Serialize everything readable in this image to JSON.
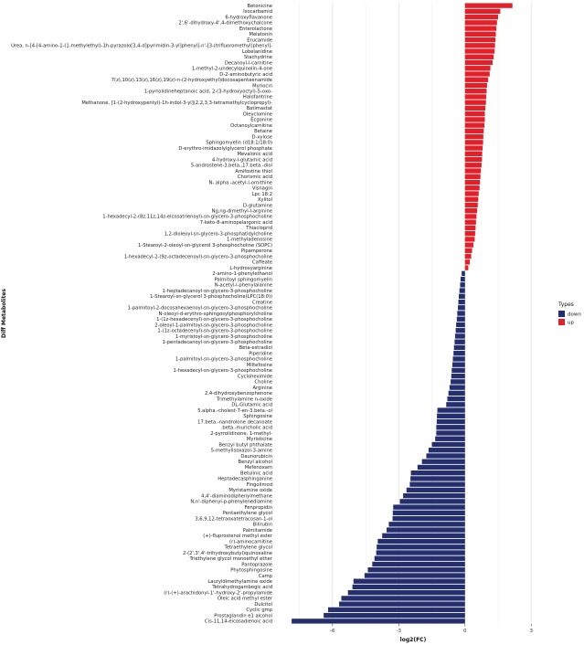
{
  "chart_data": {
    "type": "bar",
    "orientation": "horizontal",
    "xlabel": "log2(FC)",
    "ylabel": "Diff Metabolites",
    "x_ticks": [
      -6,
      -3,
      0,
      3
    ],
    "xlim": [
      -8.6,
      3.9
    ],
    "grid": true,
    "legend": {
      "title": "Types",
      "position": "right",
      "entries": [
        {
          "name": "down",
          "color": "#252f6e"
        },
        {
          "name": "up",
          "color": "#e2202a"
        }
      ]
    },
    "colors": {
      "up": "#e2202a",
      "down": "#252f6e"
    },
    "rows": [
      {
        "name": "Betonicine",
        "value": 2.15,
        "type": "up"
      },
      {
        "name": "Isocarbamid",
        "value": 1.6,
        "type": "up"
      },
      {
        "name": "6-hydroxyflavanone",
        "value": 1.5,
        "type": "up"
      },
      {
        "name": "2',6'-dihydroxy-4',4-dimethoxychalcone",
        "value": 1.45,
        "type": "up"
      },
      {
        "name": "Enterolactone",
        "value": 1.42,
        "type": "up"
      },
      {
        "name": "Melatonin",
        "value": 1.4,
        "type": "up"
      },
      {
        "name": "Erucamide",
        "value": 1.38,
        "type": "up"
      },
      {
        "name": "Urea, n-[4-[4-amino-1-(1-methylethyl)-1h-pyrazolo[3,4-d]pyrimidin-3-yl]phenyl]-n'-[3-(trifluoromethyl)phenyl]-",
        "value": 1.36,
        "type": "up"
      },
      {
        "name": "Lobelanidine",
        "value": 1.34,
        "type": "up"
      },
      {
        "name": "Stachydrine",
        "value": 1.3,
        "type": "up"
      },
      {
        "name": "Decanoyl-l-carnitine",
        "value": 1.25,
        "type": "up"
      },
      {
        "name": "1-methyl-2-undecylquinolin-4-one",
        "value": 1.15,
        "type": "up"
      },
      {
        "name": "D-2-aminobutyric acid",
        "value": 1.12,
        "type": "up"
      },
      {
        "name": "7(z),10(z),13(z),16(z),19(z)-n-(2-hydroxyethyl)docosapentaenamide",
        "value": 1.05,
        "type": "up"
      },
      {
        "name": "Myriocin",
        "value": 1.0,
        "type": "up"
      },
      {
        "name": "1-pyrrolidineheptanoic acid, 2-(3-hydroxyoctyl)-5-oxo-",
        "value": 0.98,
        "type": "up"
      },
      {
        "name": "Halofantrine",
        "value": 0.96,
        "type": "up"
      },
      {
        "name": "Methanone, [1-(2-hydroxypentyl)-1h-indol-3-yl](2,2,3,3-tetramethylcyclopropyl)-",
        "value": 0.95,
        "type": "up"
      },
      {
        "name": "Batimastat",
        "value": 0.92,
        "type": "up"
      },
      {
        "name": "Oleyclomine",
        "value": 0.9,
        "type": "up"
      },
      {
        "name": "Ecgonine",
        "value": 0.9,
        "type": "up"
      },
      {
        "name": "Octanoylcarnitine",
        "value": 0.88,
        "type": "up"
      },
      {
        "name": "Betaine",
        "value": 0.85,
        "type": "up"
      },
      {
        "name": "D-xylose",
        "value": 0.83,
        "type": "up"
      },
      {
        "name": "Sphingomyelin (d18:1/18:0)",
        "value": 0.82,
        "type": "up"
      },
      {
        "name": "D-erythro-imidazolylglycerol phosphate",
        "value": 0.8,
        "type": "up"
      },
      {
        "name": "Mevalonic acid",
        "value": 0.78,
        "type": "up"
      },
      {
        "name": "4-hydroxy-l-glutamic acid",
        "value": 0.77,
        "type": "up"
      },
      {
        "name": "5-androstene-3.beta.,17.beta.-diol",
        "value": 0.75,
        "type": "up"
      },
      {
        "name": "Amifostine thiol",
        "value": 0.72,
        "type": "up"
      },
      {
        "name": "Chorismic acid",
        "value": 0.7,
        "type": "up"
      },
      {
        "name": "N-.alpha.-acetyl-l-ornithine",
        "value": 0.68,
        "type": "up"
      },
      {
        "name": "Visnagin",
        "value": 0.66,
        "type": "up"
      },
      {
        "name": "Lpc 18:2",
        "value": 0.62,
        "type": "up"
      },
      {
        "name": "Xylitol",
        "value": 0.6,
        "type": "up"
      },
      {
        "name": "D-glutamine",
        "value": 0.58,
        "type": "up"
      },
      {
        "name": "Ng,ng-dimethyl-l-arginine",
        "value": 0.55,
        "type": "up"
      },
      {
        "name": "1-hexadecyl-2-(8z,11z,14z-eicosatrienoyl)-sn-glycero-3-phosphocholine",
        "value": 0.52,
        "type": "up"
      },
      {
        "name": "7-keto-8-aminopelargonic acid",
        "value": 0.5,
        "type": "up"
      },
      {
        "name": "Thiacloprid",
        "value": 0.48,
        "type": "up"
      },
      {
        "name": "1,2-dioleoyl-sn-glycero-3-phosphatidylcholine",
        "value": 0.46,
        "type": "up"
      },
      {
        "name": "1-methyladenosine",
        "value": 0.44,
        "type": "up"
      },
      {
        "name": "1-Stearoyl-2-oleoyl-sn-glycerol 3-phosphocholine (SOPC)",
        "value": 0.38,
        "type": "up"
      },
      {
        "name": "Pipamperone",
        "value": 0.32,
        "type": "up"
      },
      {
        "name": "1-hexadecyl-2-(9z-octadecenoyl)-sn-glycero-3-phosphocholine",
        "value": 0.28,
        "type": "up"
      },
      {
        "name": "Caffeate",
        "value": 0.22,
        "type": "up"
      },
      {
        "name": "L-hydroxyarginine",
        "value": 0.15,
        "type": "up"
      },
      {
        "name": "2-amino-1-phenylethanol",
        "value": -0.15,
        "type": "down"
      },
      {
        "name": "Palmitoyl sphingomyelin",
        "value": -0.2,
        "type": "down"
      },
      {
        "name": "N-acetyl-l-phenylalanine",
        "value": -0.22,
        "type": "down"
      },
      {
        "name": "1-heptadecanoyl-sn-glycero-3-phosphocholine",
        "value": -0.25,
        "type": "down"
      },
      {
        "name": "1-Stearoyl-sn-glycerol 3-phosphocholine(LPC(18:0))",
        "value": -0.28,
        "type": "down"
      },
      {
        "name": "Creatine",
        "value": -0.3,
        "type": "down"
      },
      {
        "name": "1-palmitoyl-2-docosahexaenoyl-sn-glycero-3-phosphocholine",
        "value": -0.32,
        "type": "down"
      },
      {
        "name": "N-oleoyl-d-erythro-sphingosylphosphorylcholine",
        "value": -0.35,
        "type": "down"
      },
      {
        "name": "1-(1z-hexadecenyl)-sn-glycero-3-phosphocholine",
        "value": -0.37,
        "type": "down"
      },
      {
        "name": "2-oleoyl-1-palmitoyl-sn-glycero-3-phosphocholine",
        "value": -0.4,
        "type": "down"
      },
      {
        "name": "1-(1z-octadecenyl)-sn-glycero-3-phosphocholine",
        "value": -0.42,
        "type": "down"
      },
      {
        "name": "1-myristoyl-sn-glycero-3-phosphocholine",
        "value": -0.45,
        "type": "down"
      },
      {
        "name": "1-pentadecanoyl-sn-glycero-3-phosphocholine",
        "value": -0.47,
        "type": "down"
      },
      {
        "name": "Beta-estradiol",
        "value": -0.5,
        "type": "down"
      },
      {
        "name": "Piperidine",
        "value": -0.52,
        "type": "down"
      },
      {
        "name": "1-palmitoyl-sn-glycero-3-phosphocholine",
        "value": -0.55,
        "type": "down"
      },
      {
        "name": "Miltefosine",
        "value": -0.57,
        "type": "down"
      },
      {
        "name": "1-hexadecyl-sn-glycero-3-phosphocholine",
        "value": -0.6,
        "type": "down"
      },
      {
        "name": "Cycloheximide",
        "value": -0.62,
        "type": "down"
      },
      {
        "name": "Choline",
        "value": -0.65,
        "type": "down"
      },
      {
        "name": "Arginine",
        "value": -0.7,
        "type": "down"
      },
      {
        "name": "2,4-dihydroxybenzophenone",
        "value": -0.75,
        "type": "down"
      },
      {
        "name": "Trimethylamine n-oxide",
        "value": -0.8,
        "type": "down"
      },
      {
        "name": "DL-Glutamic acid",
        "value": -0.85,
        "type": "down"
      },
      {
        "name": "5.alpha.-cholest-7-en-3.beta.-ol",
        "value": -1.25,
        "type": "down"
      },
      {
        "name": "Sphingosine",
        "value": -1.27,
        "type": "down"
      },
      {
        "name": "17.beta.-nandrolone decanoate",
        "value": -1.28,
        "type": "down"
      },
      {
        "name": ".beta.-muricholic acid",
        "value": -1.3,
        "type": "down"
      },
      {
        "name": "2-pyrrolidinone, 1-methyl-",
        "value": -1.3,
        "type": "down"
      },
      {
        "name": "Myristicine",
        "value": -1.35,
        "type": "down"
      },
      {
        "name": "Benzyl butyl phthalate",
        "value": -1.5,
        "type": "down"
      },
      {
        "name": "5-methylisoxazol-3-amine",
        "value": -1.65,
        "type": "down"
      },
      {
        "name": "Daunorubicin",
        "value": -1.75,
        "type": "down"
      },
      {
        "name": "Benzyl alcohol",
        "value": -1.95,
        "type": "down"
      },
      {
        "name": "Mefenoxam",
        "value": -2.15,
        "type": "down"
      },
      {
        "name": "Betulinic acid",
        "value": -2.45,
        "type": "down"
      },
      {
        "name": "Heptadecasphinganine",
        "value": -2.47,
        "type": "down"
      },
      {
        "name": "Fingolimod",
        "value": -2.5,
        "type": "down"
      },
      {
        "name": "Myristamine oxide",
        "value": -2.65,
        "type": "down"
      },
      {
        "name": "4,4'-diaminodiphenylmethane",
        "value": -2.8,
        "type": "down"
      },
      {
        "name": "N,n'-diphenyl-p-phenylenediamine",
        "value": -2.95,
        "type": "down"
      },
      {
        "name": "Fenpropidin",
        "value": -3.25,
        "type": "down"
      },
      {
        "name": "Pentaethylene glycol",
        "value": -3.27,
        "type": "down"
      },
      {
        "name": "3,6,9,12-tetraoxatetracosan-1-ol",
        "value": -3.28,
        "type": "down"
      },
      {
        "name": "Bilirubin",
        "value": -3.45,
        "type": "down"
      },
      {
        "name": "Palmitamide",
        "value": -3.55,
        "type": "down"
      },
      {
        "name": "(+)-fluprostenol methyl ester",
        "value": -3.75,
        "type": "down"
      },
      {
        "name": "(r)-aminocarnitine",
        "value": -3.95,
        "type": "down"
      },
      {
        "name": "Tetraethylene glycol",
        "value": -4.0,
        "type": "down"
      },
      {
        "name": "2-(2',3',4'-trihydroxybutyl)quinoxaline",
        "value": -4.02,
        "type": "down"
      },
      {
        "name": "Triethylene glycol monoethyl ether",
        "value": -4.1,
        "type": "down"
      },
      {
        "name": "Pantoprazole",
        "value": -4.2,
        "type": "down"
      },
      {
        "name": "Phytosphingosine",
        "value": -4.4,
        "type": "down"
      },
      {
        "name": "Camp",
        "value": -4.55,
        "type": "down"
      },
      {
        "name": "Lauryldimethylamine oxide",
        "value": -5.05,
        "type": "down"
      },
      {
        "name": "Tetrahydrogambogic acid",
        "value": -5.1,
        "type": "down"
      },
      {
        "name": "(r)-(+)-arachidonyl-1'-hydroxy-2'-propylamide",
        "value": -5.3,
        "type": "down"
      },
      {
        "name": "Oleic acid methyl ester",
        "value": -5.6,
        "type": "down"
      },
      {
        "name": "Dulcitol",
        "value": -5.7,
        "type": "down"
      },
      {
        "name": "Cyclic gmp",
        "value": -6.2,
        "type": "down"
      },
      {
        "name": "Prostaglandin e1 alcohol",
        "value": -6.4,
        "type": "down"
      },
      {
        "name": "Cis-11,14-eicosadienoic acid",
        "value": -7.85,
        "type": "down"
      }
    ]
  }
}
